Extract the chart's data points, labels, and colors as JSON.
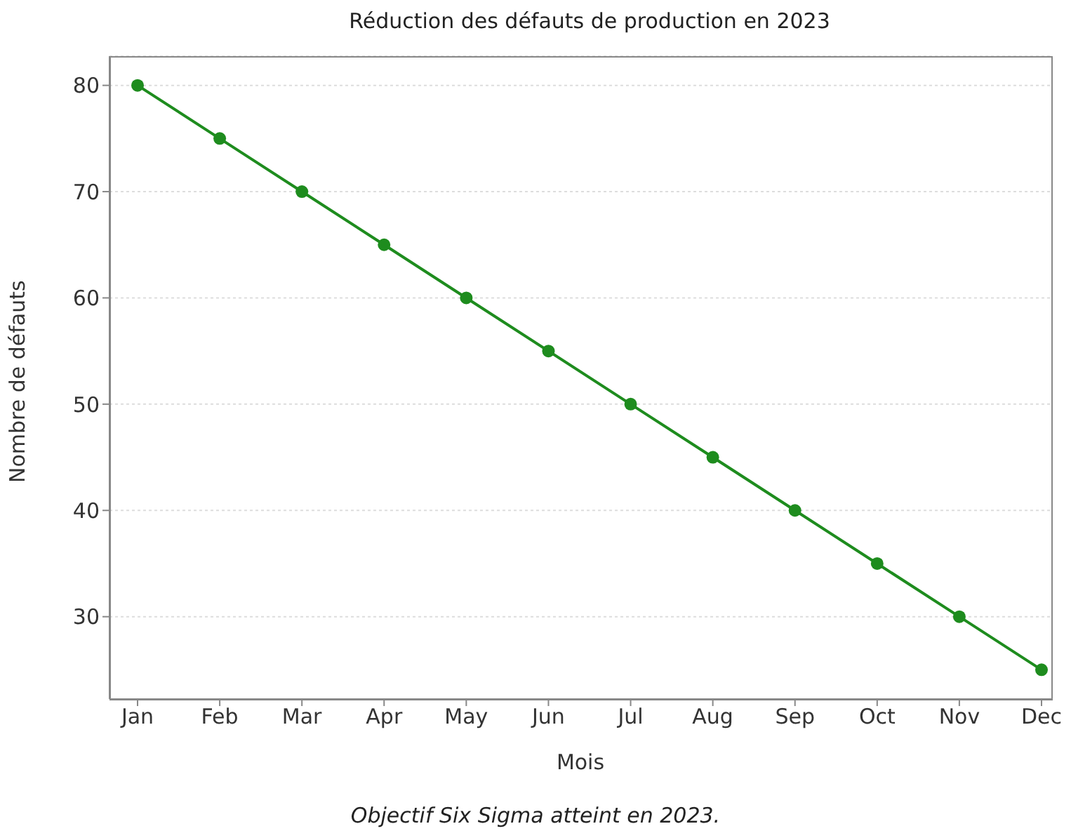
{
  "chart_data": {
    "type": "line",
    "title": "Réduction des défauts de production en 2023",
    "xlabel": "Mois",
    "ylabel": "Nombre de défauts",
    "categories": [
      "Jan",
      "Feb",
      "Mar",
      "Apr",
      "May",
      "Jun",
      "Jul",
      "Aug",
      "Sep",
      "Oct",
      "Nov",
      "Dec"
    ],
    "series": [
      {
        "color": "#1e8c1e",
        "values": [
          80,
          75,
          70,
          65,
          60,
          55,
          50,
          45,
          40,
          35,
          30,
          25
        ]
      }
    ],
    "ylim": [
      22.25,
      82.75
    ],
    "yticks": [
      30,
      40,
      50,
      60,
      70,
      80
    ],
    "grid": "y",
    "marker": "circle",
    "line_style": "solid",
    "legend": false,
    "annotations": [
      "Objectif Six Sigma atteint en 2023."
    ]
  }
}
